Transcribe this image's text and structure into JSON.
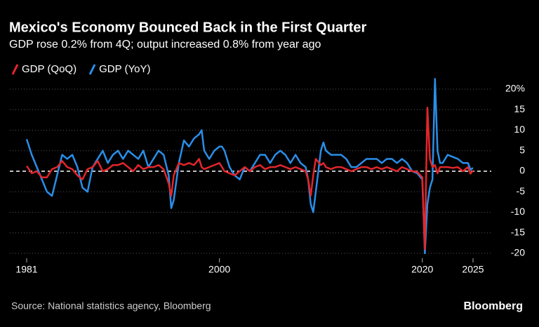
{
  "chart_data": {
    "type": "line",
    "title": "Mexico's Economy Bounced Back in the First Quarter",
    "subtitle": "GDP rose 0.2% from 4Q; output increased 0.8% from year ago",
    "source": "Source: National statistics agency, Bloomberg",
    "brand": "Bloomberg",
    "x": [
      1981.0,
      1981.5,
      1982.0,
      1982.5,
      1983.0,
      1983.5,
      1984.0,
      1984.5,
      1985.0,
      1985.5,
      1986.0,
      1986.5,
      1987.0,
      1987.5,
      1988.0,
      1988.5,
      1989.0,
      1989.5,
      1990.0,
      1990.5,
      1991.0,
      1991.5,
      1992.0,
      1992.5,
      1993.0,
      1993.5,
      1994.0,
      1994.5,
      1995.0,
      1995.25,
      1995.5,
      1996.0,
      1996.5,
      1997.0,
      1997.5,
      1998.0,
      1998.25,
      1998.5,
      1999.0,
      1999.5,
      2000.0,
      2000.25,
      2000.5,
      2001.0,
      2001.5,
      2002.0,
      2002.5,
      2003.0,
      2003.5,
      2004.0,
      2004.5,
      2005.0,
      2005.5,
      2006.0,
      2006.5,
      2007.0,
      2007.5,
      2008.0,
      2008.5,
      2008.75,
      2009.0,
      2009.25,
      2009.5,
      2010.0,
      2010.25,
      2010.5,
      2011.0,
      2011.5,
      2012.0,
      2012.5,
      2013.0,
      2013.5,
      2014.0,
      2014.5,
      2015.0,
      2015.5,
      2016.0,
      2016.5,
      2017.0,
      2017.5,
      2018.0,
      2018.5,
      2019.0,
      2019.5,
      2020.0,
      2020.25,
      2020.5,
      2020.75,
      2021.0,
      2021.25,
      2021.5,
      2021.75,
      2022.0,
      2022.5,
      2023.0,
      2023.5,
      2024.0,
      2024.5,
      2024.75,
      2025.0
    ],
    "series": [
      {
        "name": "GDP (QoQ)",
        "color": "#e2262b",
        "values": [
          1.3,
          -0.5,
          0,
          -1.5,
          -1.5,
          0.5,
          1,
          2.5,
          1,
          0.5,
          -1,
          -2,
          0.5,
          1,
          2.5,
          0,
          0.5,
          1.5,
          1.5,
          2,
          1,
          0,
          1.5,
          0.5,
          1,
          1,
          1.5,
          0.5,
          -3,
          -6,
          -1,
          2,
          1.5,
          2,
          1.5,
          3,
          1,
          0.5,
          1,
          1.5,
          2,
          1,
          0,
          -0.5,
          -1,
          0,
          1,
          0,
          1,
          1.5,
          0.5,
          1,
          1,
          1.5,
          1,
          0.5,
          1,
          0.5,
          0,
          -2,
          -6,
          -1,
          3,
          1.5,
          2,
          1,
          0.5,
          1,
          1,
          0.5,
          0,
          0.5,
          1,
          1,
          0.5,
          1,
          0.5,
          1,
          0.5,
          0,
          1,
          0.5,
          0,
          -0.2,
          -1.5,
          -19,
          15.5,
          3,
          1,
          1.5,
          -0.5,
          1,
          1,
          1,
          0.8,
          1,
          0,
          1,
          -0.6,
          0.2
        ]
      },
      {
        "name": "GDP (YoY)",
        "color": "#2a8ee8",
        "values": [
          7.8,
          4,
          1,
          -2,
          -5,
          -6,
          -1,
          4,
          3,
          4,
          1,
          -4,
          -5,
          1,
          3,
          5,
          2,
          4,
          5,
          3,
          5,
          4,
          3,
          5,
          1,
          3,
          5,
          4,
          -1,
          -9,
          -7,
          2,
          7.5,
          6,
          8,
          9,
          10,
          5,
          3,
          5,
          6,
          6,
          5,
          1,
          -1,
          -2,
          1,
          0,
          2,
          4,
          4,
          2,
          4,
          5,
          4,
          2,
          4,
          2,
          1,
          -2,
          -8,
          -10,
          -5,
          5,
          7,
          5,
          4,
          4,
          4,
          3,
          1,
          1,
          2,
          3,
          3,
          3,
          2,
          3,
          3,
          2,
          3,
          2,
          0,
          -0.5,
          -2,
          -20,
          -8,
          -4,
          -2,
          22.5,
          5,
          2,
          2,
          4,
          3.5,
          3,
          2,
          2,
          0.4,
          0.8
        ]
      }
    ],
    "xlim": [
      1981,
      2025
    ],
    "xticks": [
      1981,
      2000,
      2020,
      2025
    ],
    "ylim": [
      -20,
      23
    ],
    "yticks": [
      -20,
      -15,
      -10,
      -5,
      0,
      5,
      10,
      15,
      {
        "value": 20,
        "label": "20%"
      }
    ],
    "grid": true
  }
}
